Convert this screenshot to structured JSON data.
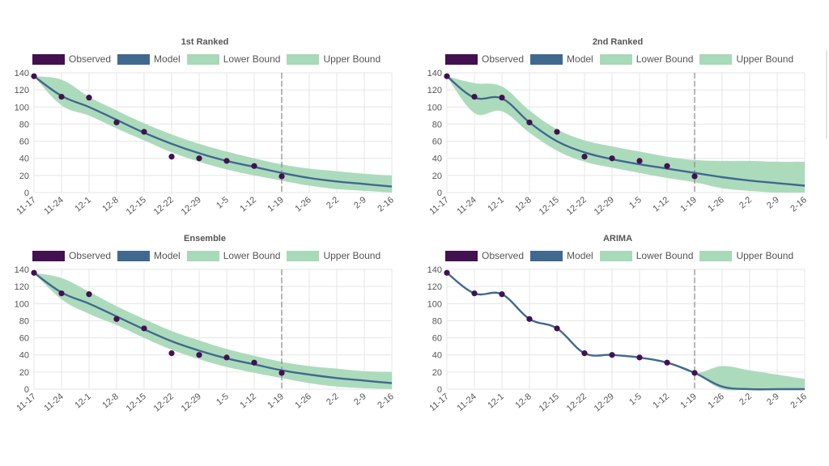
{
  "colors": {
    "observed": "#431050",
    "model": "#41698f",
    "band": "#a8d9b8",
    "grid": "#e6e6e6",
    "axis": "#555555",
    "divider": "#888888"
  },
  "legend": [
    {
      "label": "Observed",
      "color": "#431050"
    },
    {
      "label": "Model",
      "color": "#41698f"
    },
    {
      "label": "Lower Bound",
      "color": "#a8d9b8"
    },
    {
      "label": "Upper Bound",
      "color": "#a8d9b8"
    }
  ],
  "chart_data": [
    {
      "type": "line",
      "title": "1st Ranked",
      "x": [
        "11-17",
        "11-24",
        "12-1",
        "12-8",
        "12-15",
        "12-22",
        "12-29",
        "1-5",
        "1-12",
        "1-19",
        "1-26",
        "2-2",
        "2-9",
        "2-16"
      ],
      "ylim": [
        0,
        140
      ],
      "yticks": [
        0,
        20,
        40,
        60,
        80,
        100,
        120,
        140
      ],
      "forecast_start": "1-19",
      "grid": true,
      "legend_position": "top",
      "series": [
        {
          "name": "Observed",
          "type": "scatter",
          "values": [
            136,
            112,
            111,
            82,
            71,
            42,
            40,
            37,
            31,
            19,
            null,
            null,
            null,
            null
          ]
        },
        {
          "name": "Model",
          "values": [
            136,
            113,
            100,
            85,
            70,
            57,
            46,
            37,
            30,
            23,
            17,
            13,
            10,
            7
          ]
        },
        {
          "name": "Lower Bound",
          "values": [
            136,
            102,
            90,
            75,
            61,
            47,
            36,
            27,
            20,
            14,
            8,
            4,
            2,
            0
          ]
        },
        {
          "name": "Upper Bound",
          "values": [
            136,
            132,
            112,
            96,
            81,
            68,
            57,
            48,
            40,
            33,
            28,
            25,
            22,
            20
          ]
        }
      ]
    },
    {
      "type": "line",
      "title": "2nd Ranked",
      "x": [
        "11-17",
        "11-24",
        "12-1",
        "12-8",
        "12-15",
        "12-22",
        "12-29",
        "1-5",
        "1-12",
        "1-19",
        "1-26",
        "2-2",
        "2-9",
        "2-16"
      ],
      "ylim": [
        0,
        140
      ],
      "yticks": [
        0,
        20,
        40,
        60,
        80,
        100,
        120,
        140
      ],
      "forecast_start": "1-19",
      "grid": true,
      "legend_position": "top",
      "series": [
        {
          "name": "Observed",
          "type": "scatter",
          "values": [
            136,
            112,
            111,
            82,
            71,
            42,
            40,
            37,
            31,
            19,
            null,
            null,
            null,
            null
          ]
        },
        {
          "name": "Model",
          "values": [
            136,
            111,
            110,
            82,
            60,
            47,
            39,
            33,
            28,
            23,
            18,
            14,
            11,
            8
          ]
        },
        {
          "name": "Lower Bound",
          "values": [
            136,
            93,
            95,
            70,
            49,
            36,
            29,
            23,
            17,
            12,
            5,
            2,
            0,
            0
          ]
        },
        {
          "name": "Upper Bound",
          "values": [
            136,
            128,
            124,
            96,
            74,
            61,
            54,
            48,
            42,
            38,
            37,
            37,
            36,
            36
          ]
        }
      ]
    },
    {
      "type": "line",
      "title": "Ensemble",
      "x": [
        "11-17",
        "11-24",
        "12-1",
        "12-8",
        "12-15",
        "12-22",
        "12-29",
        "1-5",
        "1-12",
        "1-19",
        "1-26",
        "2-2",
        "2-9",
        "2-16"
      ],
      "ylim": [
        0,
        140
      ],
      "yticks": [
        0,
        20,
        40,
        60,
        80,
        100,
        120,
        140
      ],
      "forecast_start": "1-19",
      "grid": true,
      "legend_position": "top",
      "series": [
        {
          "name": "Observed",
          "type": "scatter",
          "values": [
            136,
            112,
            111,
            82,
            71,
            42,
            40,
            37,
            31,
            19,
            null,
            null,
            null,
            null
          ]
        },
        {
          "name": "Model",
          "values": [
            136,
            113,
            100,
            85,
            70,
            56,
            45,
            36,
            29,
            22,
            17,
            13,
            10,
            7
          ]
        },
        {
          "name": "Lower Bound",
          "values": [
            136,
            105,
            88,
            75,
            60,
            46,
            35,
            26,
            19,
            13,
            7,
            3,
            1,
            0
          ]
        },
        {
          "name": "Upper Bound",
          "values": [
            136,
            130,
            114,
            97,
            82,
            68,
            57,
            47,
            39,
            32,
            27,
            24,
            21,
            20
          ]
        }
      ]
    },
    {
      "type": "line",
      "title": "ARIMA",
      "x": [
        "11-17",
        "11-24",
        "12-1",
        "12-8",
        "12-15",
        "12-22",
        "12-29",
        "1-5",
        "1-12",
        "1-19",
        "1-26",
        "2-2",
        "2-9",
        "2-16"
      ],
      "ylim": [
        0,
        140
      ],
      "yticks": [
        0,
        20,
        40,
        60,
        80,
        100,
        120,
        140
      ],
      "forecast_start": "1-19",
      "grid": true,
      "legend_position": "top",
      "series": [
        {
          "name": "Observed",
          "type": "scatter",
          "values": [
            136,
            112,
            111,
            82,
            71,
            42,
            40,
            37,
            31,
            19,
            null,
            null,
            null,
            null
          ]
        },
        {
          "name": "Model",
          "values": [
            136,
            112,
            111,
            82,
            71,
            42,
            40,
            37,
            31,
            19,
            3,
            0,
            0,
            0
          ]
        },
        {
          "name": "Lower Bound",
          "values": [
            136,
            112,
            111,
            82,
            71,
            42,
            40,
            37,
            31,
            19,
            0,
            0,
            0,
            0
          ]
        },
        {
          "name": "Upper Bound",
          "values": [
            136,
            112,
            111,
            82,
            71,
            42,
            40,
            37,
            31,
            19,
            27,
            22,
            17,
            12
          ]
        }
      ]
    }
  ]
}
